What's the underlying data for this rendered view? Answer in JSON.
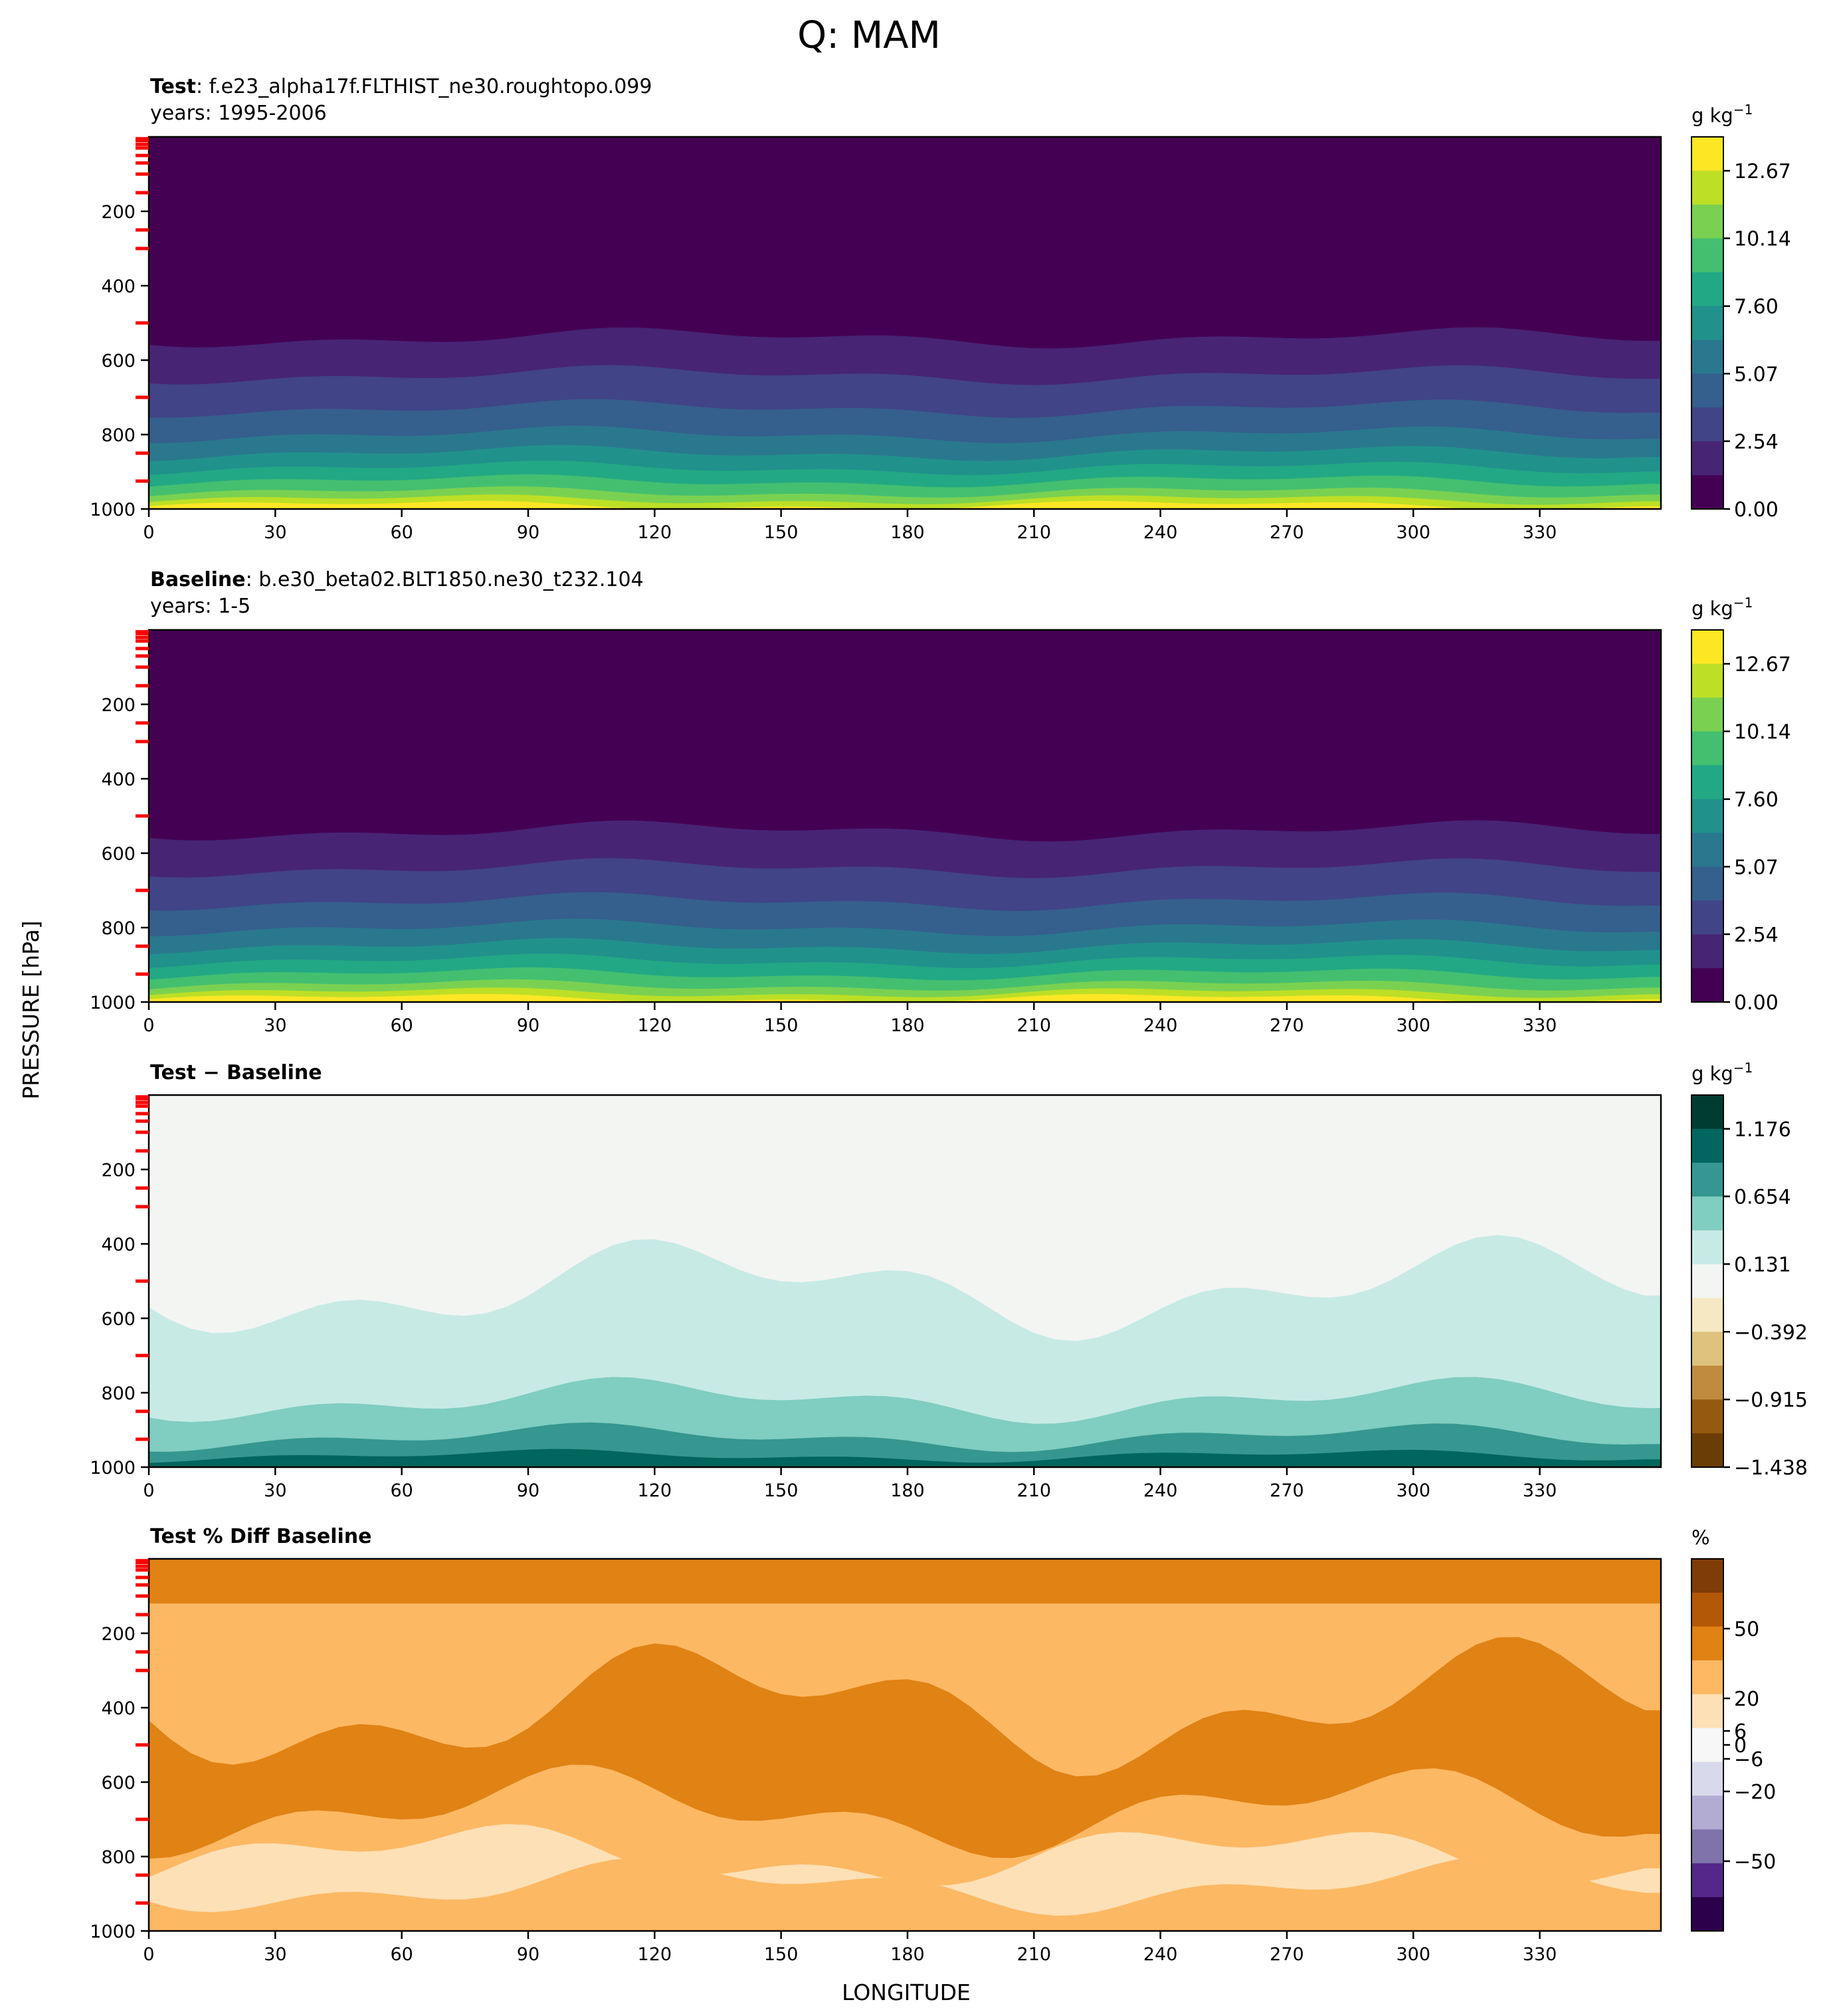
{
  "figure": {
    "suptitle": "Q: MAM",
    "ylabel": "PRESSURE [hPa]",
    "xlabel": "LONGITUDE"
  },
  "chart_data": [
    {
      "type": "heatmap",
      "title_bold": "Test",
      "title_rest": ": f.e23_alpha17f.FLTHIST_ne30.roughtopo.099",
      "subtitle": "years: 1995-2006",
      "x_ticks": [
        "0",
        "30",
        "60",
        "90",
        "120",
        "150",
        "180",
        "210",
        "240",
        "270",
        "300",
        "330"
      ],
      "y_ticks": [
        "200",
        "400",
        "600",
        "800",
        "1000"
      ],
      "xlim": [
        0,
        358.75
      ],
      "ylim": [
        1000,
        0
      ],
      "colorbar": {
        "unit": "g kg",
        "unit_sup": "−1",
        "ticks": [
          "0.00",
          "2.54",
          "5.07",
          "7.60",
          "10.14",
          "12.67"
        ],
        "range": [
          0,
          13.94
        ],
        "colors": [
          "#440154",
          "#482475",
          "#414487",
          "#355f8d",
          "#2a788e",
          "#21918c",
          "#22a884",
          "#44bf70",
          "#7ad151",
          "#bddf26",
          "#fde725"
        ]
      },
      "field": "Q specific humidity, moist near surface (~12.7 g/kg max near 90-120E), dry aloft above ~500 hPa"
    },
    {
      "type": "heatmap",
      "title_bold": "Baseline",
      "title_rest": ": b.e30_beta02.BLT1850.ne30_t232.104",
      "subtitle": "years: 1-5",
      "x_ticks": [
        "0",
        "30",
        "60",
        "90",
        "120",
        "150",
        "180",
        "210",
        "240",
        "270",
        "300",
        "330"
      ],
      "y_ticks": [
        "200",
        "400",
        "600",
        "800",
        "1000"
      ],
      "xlim": [
        0,
        358.75
      ],
      "ylim": [
        1000,
        0
      ],
      "colorbar": {
        "unit": "g kg",
        "unit_sup": "−1",
        "ticks": [
          "0.00",
          "2.54",
          "5.07",
          "7.60",
          "10.14",
          "12.67"
        ],
        "range": [
          0,
          13.94
        ],
        "colors": [
          "#440154",
          "#482475",
          "#414487",
          "#355f8d",
          "#2a788e",
          "#21918c",
          "#22a884",
          "#44bf70",
          "#7ad151",
          "#bddf26",
          "#fde725"
        ]
      },
      "field": "Q specific humidity, similar structure to Test"
    },
    {
      "type": "heatmap",
      "title_bold": "Test − Baseline",
      "title_rest": "",
      "subtitle": "",
      "x_ticks": [
        "0",
        "30",
        "60",
        "90",
        "120",
        "150",
        "180",
        "210",
        "240",
        "270",
        "300",
        "330"
      ],
      "y_ticks": [
        "200",
        "400",
        "600",
        "800",
        "1000"
      ],
      "xlim": [
        0,
        358.75
      ],
      "ylim": [
        1000,
        0
      ],
      "colorbar": {
        "unit": "g kg",
        "unit_sup": "−1",
        "ticks": [
          "1.176",
          "0.654",
          "0.131",
          "−0.392",
          "−0.915",
          "−1.438"
        ],
        "range": [
          -1.438,
          1.437
        ],
        "colors": [
          "#6b3d06",
          "#955a0f",
          "#c08b3e",
          "#dfc27d",
          "#f6e8c3",
          "#f3f5f3",
          "#c7eae5",
          "#80cdc1",
          "#35978f",
          "#01665e",
          "#003c30"
        ]
      },
      "field": "Difference mostly positive (0.1 to 1.2 g/kg) below 500 hPa, near zero aloft"
    },
    {
      "type": "heatmap",
      "title_bold": "Test % Diff Baseline",
      "title_rest": "",
      "subtitle": "",
      "x_ticks": [
        "0",
        "30",
        "60",
        "90",
        "120",
        "150",
        "180",
        "210",
        "240",
        "270",
        "300",
        "330"
      ],
      "y_ticks": [
        "200",
        "400",
        "600",
        "800",
        "1000"
      ],
      "xlim": [
        0,
        358.75
      ],
      "ylim": [
        1000,
        0
      ],
      "colorbar": {
        "unit": "%",
        "unit_sup": "",
        "ticks": [
          "50",
          "20",
          "6",
          "0",
          "−6",
          "−20",
          "−50"
        ],
        "range": [
          -80,
          80
        ],
        "colors": [
          "#2d004b",
          "#542788",
          "#8073ac",
          "#b2abd2",
          "#d8daeb",
          "#f7f7f7",
          "#fee0b6",
          "#fdb863",
          "#e08214",
          "#b35806",
          "#7f3b08"
        ]
      },
      "field": "Percent difference mostly +6 to +30% throughout column"
    }
  ]
}
